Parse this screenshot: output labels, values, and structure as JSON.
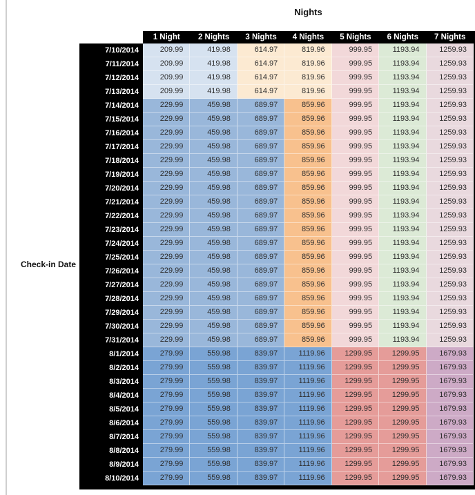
{
  "chart_data": {
    "type": "table",
    "title": "Nights",
    "row_axis_label": "Check-in Date",
    "columns": [
      "1 Night",
      "2 Nights",
      "3 Nights",
      "4 Nights",
      "5 Nights",
      "6 Nights",
      "7 Nights"
    ],
    "row_groups": [
      {
        "tier": "low",
        "dates": [
          "7/10/2014",
          "7/11/2014",
          "7/12/2014",
          "7/13/2014"
        ],
        "values": [
          209.99,
          419.98,
          614.97,
          819.96,
          999.95,
          1193.94,
          1259.93
        ],
        "cell_colors": [
          "#d6e2f0",
          "#d6e2f0",
          "#fcead2",
          "#fcead2",
          "#f2d8d9",
          "#dcead6",
          "#e9d9de"
        ]
      },
      {
        "tier": "mid",
        "dates": [
          "7/14/2014",
          "7/15/2014",
          "7/16/2014",
          "7/17/2014",
          "7/18/2014",
          "7/19/2014",
          "7/20/2014",
          "7/21/2014",
          "7/22/2014",
          "7/23/2014",
          "7/24/2014",
          "7/25/2014",
          "7/26/2014",
          "7/27/2014",
          "7/28/2014",
          "7/29/2014",
          "7/30/2014",
          "7/31/2014"
        ],
        "values": [
          229.99,
          459.98,
          689.97,
          859.96,
          999.95,
          1193.94,
          1259.93
        ],
        "cell_colors": [
          "#99b7da",
          "#99b7da",
          "#99b7da",
          "#f8c18e",
          "#f2d8d9",
          "#dcead6",
          "#e9d9de"
        ]
      },
      {
        "tier": "high",
        "dates": [
          "8/1/2014",
          "8/2/2014",
          "8/3/2014",
          "8/4/2014",
          "8/5/2014",
          "8/6/2014",
          "8/7/2014",
          "8/8/2014",
          "8/9/2014",
          "8/10/2014"
        ],
        "values": [
          279.99,
          559.98,
          839.97,
          1119.96,
          1299.95,
          1299.95,
          1679.93
        ],
        "cell_colors": [
          "#7aa4d4",
          "#7aa4d4",
          "#7aa4d4",
          "#7aa4d4",
          "#e59c99",
          "#e59c99",
          "#cdaac6"
        ]
      }
    ],
    "layout": {
      "header_bg": "#000000",
      "header_text_color": "#ffffff",
      "value_text_color": "#2e2e2e",
      "worksheet_gridline_color": "#cfcfcf"
    }
  }
}
